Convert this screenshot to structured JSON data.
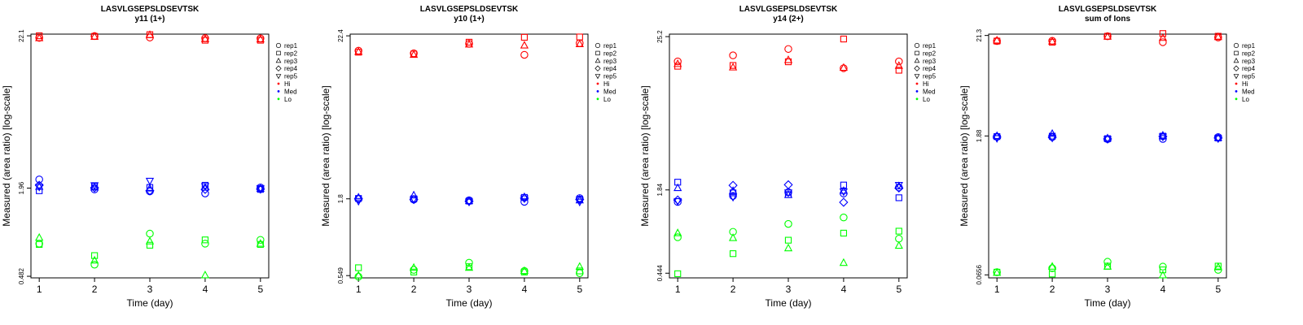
{
  "legend": {
    "shapes": [
      {
        "label": "rep1",
        "icon": "circle"
      },
      {
        "label": "rep2",
        "icon": "square"
      },
      {
        "label": "rep3",
        "icon": "triangle-up"
      },
      {
        "label": "rep4",
        "icon": "diamond"
      },
      {
        "label": "rep5",
        "icon": "triangle-down"
      }
    ],
    "groups": [
      {
        "label": "Hi",
        "color": "#ff0000"
      },
      {
        "label": "Med",
        "color": "#0000ff"
      },
      {
        "label": "Lo",
        "color": "#00ff00"
      }
    ]
  },
  "chart_data": [
    {
      "type": "scatter",
      "title": "LASVLGSEPSLDSEVTSK",
      "subtitle": "y11 (1+)",
      "xlabel": "Time (day)",
      "ylabel": "Measured (area ratio) [log-scale]",
      "x_ticks": [
        1,
        2,
        3,
        4,
        5
      ],
      "y_ticks": [
        "22.1",
        "1.96",
        "0.482"
      ],
      "log_scale": true,
      "grid": false,
      "legend_position": "right",
      "ylim": [
        0.47,
        22.7
      ],
      "series": [
        {
          "group": "Hi",
          "rep": "rep1",
          "x": [
            1,
            2,
            3,
            4,
            5
          ],
          "y": [
            21.4,
            22.0,
            21.5,
            21.3,
            21.2
          ]
        },
        {
          "group": "Hi",
          "rep": "rep2",
          "x": [
            1,
            2,
            3,
            4,
            5
          ],
          "y": [
            22.1,
            21.9,
            22.5,
            20.6,
            20.6
          ]
        },
        {
          "group": "Hi",
          "rep": "rep3",
          "x": [
            1,
            2,
            3,
            4,
            5
          ],
          "y": [
            21.3,
            21.8,
            22.4,
            21.0,
            20.9
          ]
        },
        {
          "group": "Med",
          "rep": "rep1",
          "x": [
            1,
            2,
            3,
            4,
            5
          ],
          "y": [
            2.25,
            1.92,
            1.86,
            1.8,
            1.98
          ]
        },
        {
          "group": "Med",
          "rep": "rep2",
          "x": [
            1,
            2,
            3,
            4,
            5
          ],
          "y": [
            1.88,
            2.02,
            1.98,
            2.05,
            1.92
          ]
        },
        {
          "group": "Med",
          "rep": "rep3",
          "x": [
            1,
            2,
            3,
            4,
            5
          ],
          "y": [
            2.0,
            1.98,
            1.95,
            1.98,
            1.94
          ]
        },
        {
          "group": "Med",
          "rep": "rep4",
          "x": [
            1,
            2,
            3,
            4,
            5
          ],
          "y": [
            2.05,
            1.97,
            1.88,
            1.92,
            1.93
          ]
        },
        {
          "group": "Med",
          "rep": "rep5",
          "x": [
            1,
            2,
            3,
            4,
            5
          ],
          "y": [
            2.0,
            2.05,
            2.2,
            2.02,
            1.96
          ]
        },
        {
          "group": "Lo",
          "rep": "rep1",
          "x": [
            1,
            2,
            3,
            4,
            5
          ],
          "y": [
            0.81,
            0.58,
            0.95,
            0.81,
            0.86
          ]
        },
        {
          "group": "Lo",
          "rep": "rep2",
          "x": [
            1,
            2,
            3,
            4,
            5
          ],
          "y": [
            0.8,
            0.67,
            0.79,
            0.86,
            0.8
          ]
        },
        {
          "group": "Lo",
          "rep": "rep3",
          "x": [
            1,
            2,
            3,
            4,
            5
          ],
          "y": [
            0.89,
            0.62,
            0.84,
            0.49,
            0.81
          ]
        }
      ]
    },
    {
      "type": "scatter",
      "title": "LASVLGSEPSLDSEVTSK",
      "subtitle": "y10 (1+)",
      "xlabel": "Time (day)",
      "ylabel": "Measured (area ratio) [log-scale]",
      "x_ticks": [
        1,
        2,
        3,
        4,
        5
      ],
      "y_ticks": [
        "22.4",
        "1.8",
        "0.549"
      ],
      "log_scale": true,
      "grid": false,
      "legend_position": "right",
      "ylim": [
        0.53,
        23.0
      ],
      "series": [
        {
          "group": "Hi",
          "rep": "rep1",
          "x": [
            1,
            2,
            3,
            4,
            5
          ],
          "y": [
            17.8,
            17.1,
            19.8,
            16.7,
            20.0
          ]
        },
        {
          "group": "Hi",
          "rep": "rep2",
          "x": [
            1,
            2,
            3,
            4,
            5
          ],
          "y": [
            17.4,
            16.9,
            20.3,
            21.9,
            22.0
          ]
        },
        {
          "group": "Hi",
          "rep": "rep3",
          "x": [
            1,
            2,
            3,
            4,
            5
          ],
          "y": [
            17.5,
            16.7,
            19.6,
            19.3,
            19.7
          ]
        },
        {
          "group": "Med",
          "rep": "rep1",
          "x": [
            1,
            2,
            3,
            4,
            5
          ],
          "y": [
            1.8,
            1.78,
            1.76,
            1.72,
            1.82
          ]
        },
        {
          "group": "Med",
          "rep": "rep2",
          "x": [
            1,
            2,
            3,
            4,
            5
          ],
          "y": [
            1.81,
            1.8,
            1.74,
            1.84,
            1.79
          ]
        },
        {
          "group": "Med",
          "rep": "rep3",
          "x": [
            1,
            2,
            3,
            4,
            5
          ],
          "y": [
            1.84,
            1.9,
            1.74,
            1.85,
            1.76
          ]
        },
        {
          "group": "Med",
          "rep": "rep4",
          "x": [
            1,
            2,
            3,
            4,
            5
          ],
          "y": [
            1.8,
            1.78,
            1.73,
            1.82,
            1.78
          ]
        },
        {
          "group": "Med",
          "rep": "rep5",
          "x": [
            1,
            2,
            3,
            4,
            5
          ],
          "y": [
            1.74,
            1.79,
            1.72,
            1.81,
            1.72
          ]
        },
        {
          "group": "Lo",
          "rep": "rep1",
          "x": [
            1,
            2,
            3,
            4,
            5
          ],
          "y": [
            0.54,
            0.6,
            0.67,
            0.59,
            0.57
          ]
        },
        {
          "group": "Lo",
          "rep": "rep2",
          "x": [
            1,
            2,
            3,
            4,
            5
          ],
          "y": [
            0.62,
            0.58,
            0.63,
            0.58,
            0.59
          ]
        },
        {
          "group": "Lo",
          "rep": "rep3",
          "x": [
            1,
            2,
            3,
            4,
            5
          ],
          "y": [
            0.55,
            0.62,
            0.62,
            0.59,
            0.63
          ]
        }
      ]
    },
    {
      "type": "scatter",
      "title": "LASVLGSEPSLDSEVTSK",
      "subtitle": "y14 (2+)",
      "xlabel": "Time (day)",
      "ylabel": "Measured (area ratio) [log-scale]",
      "x_ticks": [
        1,
        2,
        3,
        4,
        5
      ],
      "y_ticks": [
        "25.2",
        "1.84",
        "0.444"
      ],
      "log_scale": true,
      "grid": false,
      "legend_position": "right",
      "ylim": [
        0.41,
        26.3
      ],
      "series": [
        {
          "group": "Hi",
          "rep": "rep1",
          "x": [
            1,
            2,
            3,
            4,
            5
          ],
          "y": [
            16.5,
            18.3,
            20.4,
            14.7,
            16.5
          ]
        },
        {
          "group": "Hi",
          "rep": "rep2",
          "x": [
            1,
            2,
            3,
            4,
            5
          ],
          "y": [
            15.2,
            15.4,
            16.4,
            24.2,
            14.2
          ]
        },
        {
          "group": "Hi",
          "rep": "rep3",
          "x": [
            1,
            2,
            3,
            4,
            5
          ],
          "y": [
            15.8,
            14.9,
            16.9,
            14.8,
            15.3
          ]
        },
        {
          "group": "Med",
          "rep": "rep1",
          "x": [
            1,
            2,
            3,
            4,
            5
          ],
          "y": [
            1.5,
            1.66,
            1.77,
            1.73,
            1.92
          ]
        },
        {
          "group": "Med",
          "rep": "rep2",
          "x": [
            1,
            2,
            3,
            4,
            5
          ],
          "y": [
            2.1,
            1.75,
            1.7,
            2.0,
            1.61
          ]
        },
        {
          "group": "Med",
          "rep": "rep3",
          "x": [
            1,
            2,
            3,
            4,
            5
          ],
          "y": [
            1.9,
            1.81,
            1.69,
            1.81,
            1.96
          ]
        },
        {
          "group": "Med",
          "rep": "rep4",
          "x": [
            1,
            2,
            3,
            4,
            5
          ],
          "y": [
            1.55,
            1.99,
            2.01,
            1.49,
            1.9
          ]
        },
        {
          "group": "Med",
          "rep": "rep5",
          "x": [
            1,
            2,
            3,
            4,
            5
          ],
          "y": [
            1.52,
            1.63,
            1.76,
            1.79,
            2.0
          ]
        },
        {
          "group": "Lo",
          "rep": "rep1",
          "x": [
            1,
            2,
            3,
            4,
            5
          ],
          "y": [
            0.82,
            0.9,
            1.03,
            1.15,
            0.8
          ]
        },
        {
          "group": "Lo",
          "rep": "rep2",
          "x": [
            1,
            2,
            3,
            4,
            5
          ],
          "y": [
            0.44,
            0.62,
            0.78,
            0.88,
            0.91
          ]
        },
        {
          "group": "Lo",
          "rep": "rep3",
          "x": [
            1,
            2,
            3,
            4,
            5
          ],
          "y": [
            0.88,
            0.81,
            0.68,
            0.53,
            0.71
          ]
        }
      ]
    },
    {
      "type": "scatter",
      "title": "LASVLGSEPSLDSEVTSK",
      "subtitle": "sum of Ions",
      "xlabel": "Time (day)",
      "ylabel": "Measured (area ratio) [log-scale]",
      "x_ticks": [
        1,
        2,
        3,
        4,
        5
      ],
      "y_ticks": [
        "21.3",
        "1.88",
        "0.0656"
      ],
      "log_scale": true,
      "grid": false,
      "legend_position": "right",
      "ylim": [
        0.061,
        22.0
      ],
      "series": [
        {
          "group": "Hi",
          "rep": "rep1",
          "x": [
            1,
            2,
            3,
            4,
            5
          ],
          "y": [
            18.6,
            18.7,
            20.9,
            18.1,
            20.3
          ]
        },
        {
          "group": "Hi",
          "rep": "rep2",
          "x": [
            1,
            2,
            3,
            4,
            5
          ],
          "y": [
            18.6,
            18.1,
            20.9,
            22.3,
            20.9
          ]
        },
        {
          "group": "Hi",
          "rep": "rep3",
          "x": [
            1,
            2,
            3,
            4,
            5
          ],
          "y": [
            18.9,
            18.4,
            20.7,
            20.1,
            20.5
          ]
        },
        {
          "group": "Med",
          "rep": "rep1",
          "x": [
            1,
            2,
            3,
            4,
            5
          ],
          "y": [
            1.85,
            1.83,
            1.74,
            1.75,
            1.83
          ]
        },
        {
          "group": "Med",
          "rep": "rep2",
          "x": [
            1,
            2,
            3,
            4,
            5
          ],
          "y": [
            1.85,
            1.87,
            1.76,
            1.87,
            1.79
          ]
        },
        {
          "group": "Med",
          "rep": "rep3",
          "x": [
            1,
            2,
            3,
            4,
            5
          ],
          "y": [
            1.88,
            1.98,
            1.78,
            1.9,
            1.8
          ]
        },
        {
          "group": "Med",
          "rep": "rep4",
          "x": [
            1,
            2,
            3,
            4,
            5
          ],
          "y": [
            1.83,
            1.82,
            1.75,
            1.86,
            1.79
          ]
        },
        {
          "group": "Med",
          "rep": "rep5",
          "x": [
            1,
            2,
            3,
            4,
            5
          ],
          "y": [
            1.78,
            1.8,
            1.74,
            1.85,
            1.77
          ]
        },
        {
          "group": "Lo",
          "rep": "rep1",
          "x": [
            1,
            2,
            3,
            4,
            5
          ],
          "y": [
            0.07,
            0.077,
            0.09,
            0.08,
            0.074
          ]
        },
        {
          "group": "Lo",
          "rep": "rep2",
          "x": [
            1,
            2,
            3,
            4,
            5
          ],
          "y": [
            0.07,
            0.067,
            0.081,
            0.074,
            0.081
          ]
        },
        {
          "group": "Lo",
          "rep": "rep3",
          "x": [
            1,
            2,
            3,
            4,
            5
          ],
          "y": [
            0.069,
            0.08,
            0.08,
            0.065,
            0.079
          ]
        }
      ]
    }
  ]
}
